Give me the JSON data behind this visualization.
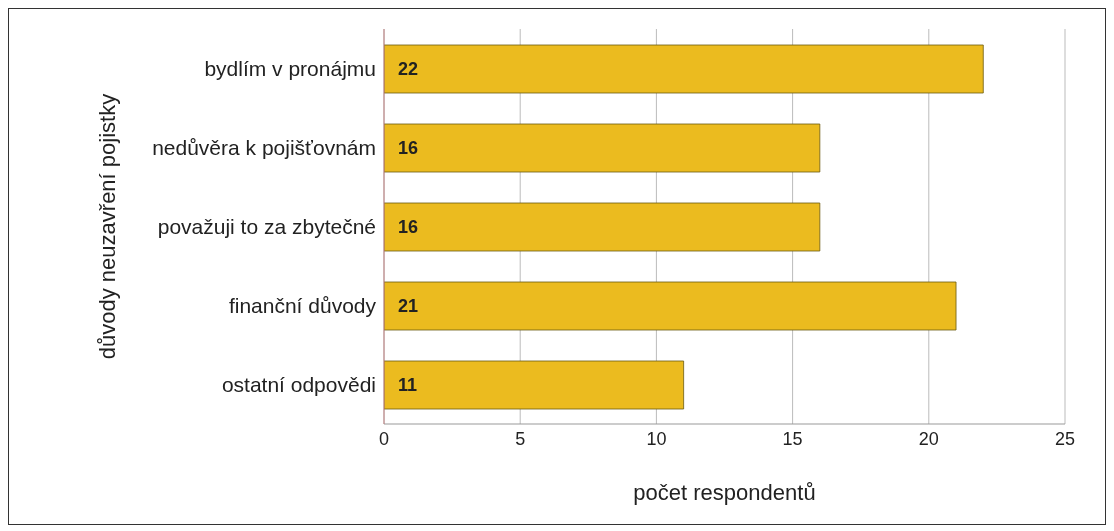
{
  "chart_data": {
    "type": "bar",
    "orientation": "horizontal",
    "xlabel": "počet respondentů",
    "ylabel": "důvody neuzavření pojistky",
    "categories": [
      "bydlím v pronájmu",
      "nedůvěra k pojišťovnám",
      "považuji to za zbytečné",
      "finanční důvody",
      "ostatní odpovědi"
    ],
    "values": [
      22,
      16,
      16,
      21,
      11
    ],
    "color": "#ebbb1f",
    "xlim": [
      0,
      25
    ],
    "xticks": [
      0,
      5,
      10,
      15,
      20,
      25
    ],
    "grid": "x",
    "data_labels": true
  }
}
